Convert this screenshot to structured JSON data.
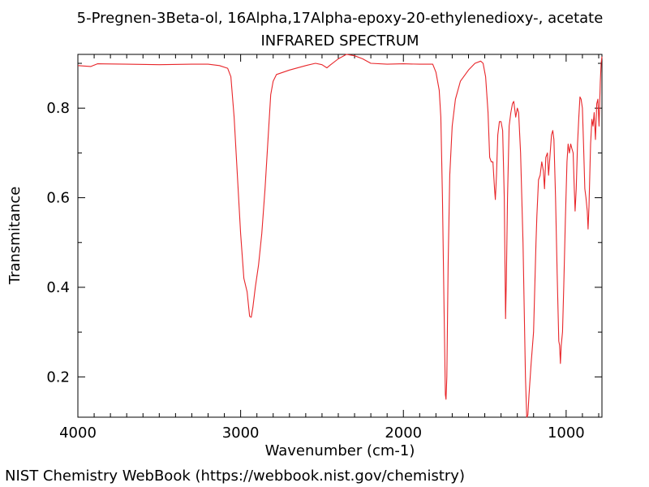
{
  "footer": "NIST Chemistry WebBook (https://webbook.nist.gov/chemistry)",
  "chart_data": {
    "type": "line",
    "title": "5-Pregnen-3Beta-ol, 16Alpha,17Alpha-epoxy-20-ethylenedioxy-, acetate",
    "subtitle": "INFRARED SPECTRUM",
    "xlabel": "Wavenumber (cm-1)",
    "ylabel": "Transmitance",
    "x_reversed": true,
    "xlim": [
      4000,
      780
    ],
    "ylim": [
      0.11,
      0.92
    ],
    "x_ticks": [
      4000,
      3000,
      2000,
      1000
    ],
    "x_tick_labels": [
      "4000",
      "3000",
      "2000",
      "1000"
    ],
    "y_ticks": [
      0.2,
      0.4,
      0.6,
      0.8
    ],
    "y_tick_labels": [
      "0.2",
      "0.4",
      "0.6",
      "0.8"
    ],
    "grid": false,
    "line_color": "#e8262a",
    "series": [
      {
        "points": [
          [
            4000,
            0.895
          ],
          [
            3920,
            0.893
          ],
          [
            3880,
            0.899
          ],
          [
            3700,
            0.898
          ],
          [
            3500,
            0.897
          ],
          [
            3300,
            0.898
          ],
          [
            3200,
            0.898
          ],
          [
            3130,
            0.895
          ],
          [
            3080,
            0.889
          ],
          [
            3060,
            0.87
          ],
          [
            3040,
            0.78
          ],
          [
            3020,
            0.65
          ],
          [
            3000,
            0.52
          ],
          [
            2980,
            0.42
          ],
          [
            2960,
            0.39
          ],
          [
            2945,
            0.335
          ],
          [
            2935,
            0.333
          ],
          [
            2925,
            0.355
          ],
          [
            2910,
            0.4
          ],
          [
            2890,
            0.45
          ],
          [
            2870,
            0.52
          ],
          [
            2850,
            0.62
          ],
          [
            2830,
            0.74
          ],
          [
            2815,
            0.83
          ],
          [
            2800,
            0.86
          ],
          [
            2780,
            0.875
          ],
          [
            2700,
            0.885
          ],
          [
            2600,
            0.895
          ],
          [
            2540,
            0.9
          ],
          [
            2500,
            0.897
          ],
          [
            2470,
            0.89
          ],
          [
            2450,
            0.896
          ],
          [
            2400,
            0.91
          ],
          [
            2350,
            0.92
          ],
          [
            2300,
            0.917
          ],
          [
            2250,
            0.91
          ],
          [
            2200,
            0.9
          ],
          [
            2100,
            0.898
          ],
          [
            2000,
            0.899
          ],
          [
            1900,
            0.898
          ],
          [
            1820,
            0.898
          ],
          [
            1800,
            0.88
          ],
          [
            1780,
            0.84
          ],
          [
            1770,
            0.78
          ],
          [
            1760,
            0.6
          ],
          [
            1750,
            0.35
          ],
          [
            1742,
            0.16
          ],
          [
            1738,
            0.15
          ],
          [
            1733,
            0.2
          ],
          [
            1725,
            0.45
          ],
          [
            1715,
            0.65
          ],
          [
            1700,
            0.76
          ],
          [
            1680,
            0.82
          ],
          [
            1650,
            0.86
          ],
          [
            1600,
            0.885
          ],
          [
            1560,
            0.9
          ],
          [
            1525,
            0.905
          ],
          [
            1510,
            0.9
          ],
          [
            1495,
            0.87
          ],
          [
            1480,
            0.79
          ],
          [
            1470,
            0.69
          ],
          [
            1460,
            0.68
          ],
          [
            1450,
            0.68
          ],
          [
            1440,
            0.62
          ],
          [
            1435,
            0.596
          ],
          [
            1428,
            0.65
          ],
          [
            1420,
            0.74
          ],
          [
            1410,
            0.77
          ],
          [
            1400,
            0.77
          ],
          [
            1390,
            0.75
          ],
          [
            1380,
            0.6
          ],
          [
            1372,
            0.33
          ],
          [
            1367,
            0.42
          ],
          [
            1360,
            0.6
          ],
          [
            1350,
            0.76
          ],
          [
            1340,
            0.79
          ],
          [
            1330,
            0.81
          ],
          [
            1322,
            0.815
          ],
          [
            1310,
            0.78
          ],
          [
            1300,
            0.8
          ],
          [
            1292,
            0.79
          ],
          [
            1280,
            0.7
          ],
          [
            1265,
            0.5
          ],
          [
            1250,
            0.2
          ],
          [
            1242,
            0.11
          ],
          [
            1235,
            0.115
          ],
          [
            1228,
            0.16
          ],
          [
            1215,
            0.23
          ],
          [
            1200,
            0.3
          ],
          [
            1185,
            0.5
          ],
          [
            1180,
            0.56
          ],
          [
            1170,
            0.64
          ],
          [
            1160,
            0.65
          ],
          [
            1150,
            0.68
          ],
          [
            1140,
            0.66
          ],
          [
            1133,
            0.62
          ],
          [
            1125,
            0.69
          ],
          [
            1115,
            0.7
          ],
          [
            1108,
            0.65
          ],
          [
            1100,
            0.69
          ],
          [
            1090,
            0.74
          ],
          [
            1082,
            0.75
          ],
          [
            1075,
            0.73
          ],
          [
            1065,
            0.6
          ],
          [
            1055,
            0.43
          ],
          [
            1045,
            0.28
          ],
          [
            1040,
            0.27
          ],
          [
            1035,
            0.23
          ],
          [
            1030,
            0.27
          ],
          [
            1022,
            0.3
          ],
          [
            1015,
            0.4
          ],
          [
            1005,
            0.55
          ],
          [
            995,
            0.68
          ],
          [
            988,
            0.72
          ],
          [
            980,
            0.7
          ],
          [
            972,
            0.72
          ],
          [
            965,
            0.71
          ],
          [
            957,
            0.7
          ],
          [
            950,
            0.62
          ],
          [
            945,
            0.57
          ],
          [
            938,
            0.62
          ],
          [
            930,
            0.72
          ],
          [
            922,
            0.78
          ],
          [
            915,
            0.825
          ],
          [
            908,
            0.82
          ],
          [
            900,
            0.8
          ],
          [
            893,
            0.72
          ],
          [
            885,
            0.62
          ],
          [
            878,
            0.6
          ],
          [
            870,
            0.57
          ],
          [
            865,
            0.53
          ],
          [
            860,
            0.58
          ],
          [
            850,
            0.72
          ],
          [
            842,
            0.775
          ],
          [
            835,
            0.76
          ],
          [
            828,
            0.79
          ],
          [
            820,
            0.73
          ],
          [
            812,
            0.81
          ],
          [
            805,
            0.82
          ],
          [
            798,
            0.76
          ],
          [
            790,
            0.86
          ],
          [
            785,
            0.9
          ],
          [
            780,
            0.915
          ]
        ]
      }
    ]
  }
}
